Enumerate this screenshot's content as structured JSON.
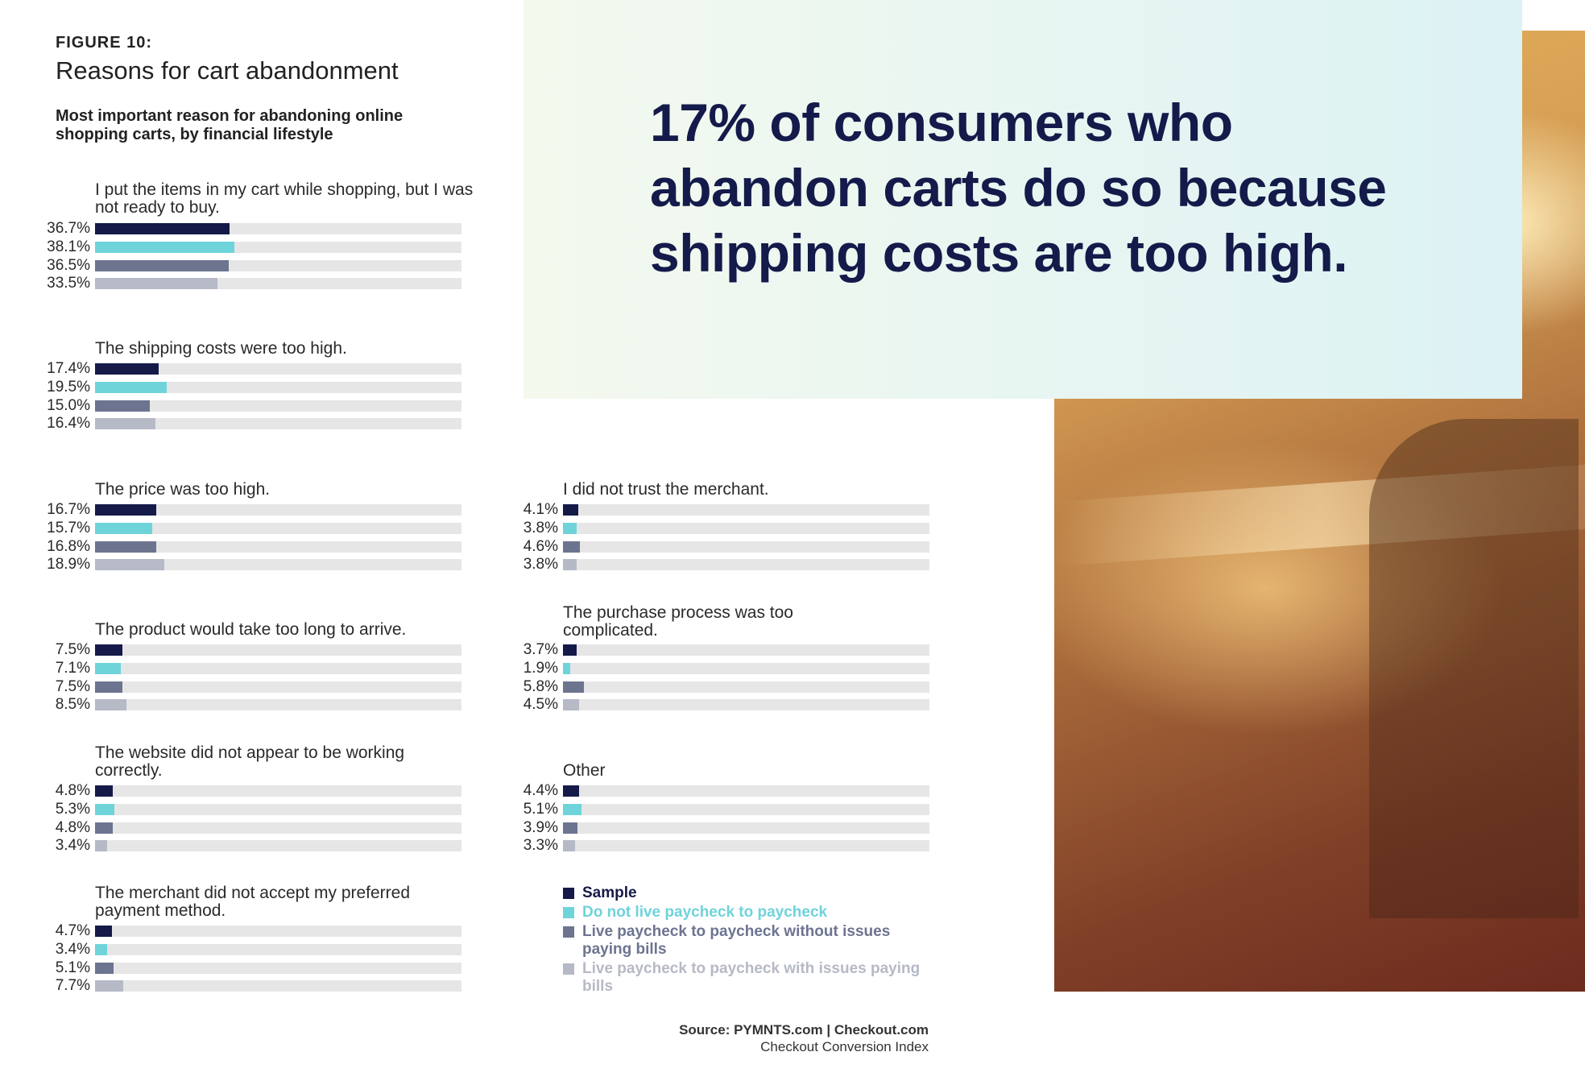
{
  "figure": {
    "number": "FIGURE 10:",
    "title": "Reasons for cart abandonment",
    "subtitle": "Most important reason for abandoning online shopping carts, by financial lifestyle"
  },
  "callout": "17% of consumers who abandon carts do so because shipping costs are too high.",
  "colors": {
    "sample": "#151a48",
    "not_paycheck": "#6fd3da",
    "paycheck_no_issues": "#6d7490",
    "paycheck_issues": "#b6b9c6",
    "track": "#e6e6e6"
  },
  "chart_data": {
    "type": "bar",
    "orientation": "horizontal",
    "xlim": [
      0,
      100
    ],
    "series_names": [
      "Sample",
      "Do not live paycheck to paycheck",
      "Live paycheck to paycheck without issues paying bills",
      "Live paycheck to paycheck with issues paying bills"
    ],
    "groups": [
      {
        "title": "I put the items in my cart while shopping, but I was not ready to buy.",
        "values": [
          36.7,
          38.1,
          36.5,
          33.5
        ],
        "labels": [
          "36.7%",
          "38.1%",
          "36.5%",
          "33.5%"
        ]
      },
      {
        "title": "The shipping costs were too high.",
        "values": [
          17.4,
          19.5,
          15.0,
          16.4
        ],
        "labels": [
          "17.4%",
          "19.5%",
          "15.0%",
          "16.4%"
        ]
      },
      {
        "title": "The price was too high.",
        "values": [
          16.7,
          15.7,
          16.8,
          18.9
        ],
        "labels": [
          "16.7%",
          "15.7%",
          "16.8%",
          "18.9%"
        ]
      },
      {
        "title": "The product would take too long to arrive.",
        "values": [
          7.5,
          7.1,
          7.5,
          8.5
        ],
        "labels": [
          "7.5%",
          "7.1%",
          "7.5%",
          "8.5%"
        ]
      },
      {
        "title": "The website did not appear to be working correctly.",
        "values": [
          4.8,
          5.3,
          4.8,
          3.4
        ],
        "labels": [
          "4.8%",
          "5.3%",
          "4.8%",
          "3.4%"
        ]
      },
      {
        "title": "The merchant did not accept my preferred payment method.",
        "values": [
          4.7,
          3.4,
          5.1,
          7.7
        ],
        "labels": [
          "4.7%",
          "3.4%",
          "5.1%",
          "7.7%"
        ]
      },
      {
        "title": "I did not trust the merchant.",
        "values": [
          4.1,
          3.8,
          4.6,
          3.8
        ],
        "labels": [
          "4.1%",
          "3.8%",
          "4.6%",
          "3.8%"
        ]
      },
      {
        "title": "The purchase process was too complicated.",
        "values": [
          3.7,
          1.9,
          5.8,
          4.5
        ],
        "labels": [
          "3.7%",
          "1.9%",
          "5.8%",
          "4.5%"
        ]
      },
      {
        "title": "Other",
        "values": [
          4.4,
          5.1,
          3.9,
          3.3
        ],
        "labels": [
          "4.4%",
          "5.1%",
          "3.9%",
          "3.3%"
        ]
      }
    ]
  },
  "source": {
    "prefix": "Source:",
    "org1": "PYMNTS.com",
    "separator": "|",
    "org2": "Checkout.com",
    "line2": "Checkout Conversion Index"
  }
}
